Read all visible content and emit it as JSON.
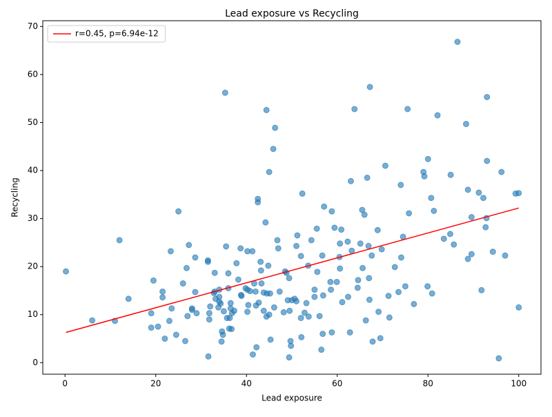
{
  "chart_data": {
    "type": "scatter",
    "title": "Lead exposure vs Recycling",
    "xlabel": "Lead exposure",
    "ylabel": "Recycling",
    "xlim": [
      -4.9,
      104.9
    ],
    "ylim": [
      -2.4,
      71.2
    ],
    "xticks": [
      0,
      20,
      40,
      60,
      80,
      100
    ],
    "yticks": [
      0,
      10,
      20,
      30,
      40,
      50,
      60,
      70
    ],
    "legend_loc": "upper left",
    "points": {
      "color": "#1f77b4",
      "x": [
        0.2,
        6,
        11,
        12,
        14,
        19,
        19,
        19.5,
        20.5,
        21.5,
        21.5,
        22,
        23,
        23.3,
        23.5,
        24.5,
        25,
        26,
        26.5,
        26.8,
        27,
        27.3,
        28,
        28,
        28.7,
        28.7,
        29,
        31.5,
        31.5,
        31.6,
        31.8,
        31.8,
        32,
        32.8,
        33,
        33,
        33.2,
        33.8,
        34,
        34,
        34,
        34.3,
        34.5,
        34.6,
        34.8,
        35,
        35.3,
        35.5,
        35.7,
        36,
        36,
        36.2,
        36.3,
        36.5,
        36.5,
        36.7,
        36.8,
        37.3,
        37.8,
        38.2,
        38.7,
        38.8,
        38.9,
        39.8,
        40.2,
        40.2,
        40.2,
        40.4,
        40.8,
        41.3,
        41.4,
        41.7,
        42,
        42.1,
        42.2,
        42.5,
        42.5,
        42.7,
        43.1,
        43.2,
        43.3,
        43.8,
        43.8,
        44.2,
        44.4,
        44.4,
        44.5,
        44.8,
        45,
        45,
        45.2,
        45.3,
        45.9,
        46.1,
        46.3,
        46.8,
        47,
        47.3,
        48.2,
        48.5,
        48.8,
        49.1,
        49.4,
        49.4,
        49.5,
        49.7,
        49.8,
        50,
        50.6,
        51,
        51,
        51.2,
        52,
        52,
        52.1,
        52.3,
        52.8,
        53.2,
        53.6,
        53.7,
        54.3,
        55,
        55,
        55.5,
        55.6,
        56.1,
        56.5,
        56.7,
        56.8,
        56.9,
        57.1,
        58.5,
        58.6,
        58.8,
        58.8,
        59.4,
        59.9,
        60.5,
        60.6,
        60.6,
        60.9,
        61.1,
        62.3,
        62.4,
        62.8,
        63,
        63.2,
        63.8,
        64.5,
        64.6,
        65.1,
        65.5,
        65.6,
        66,
        66.3,
        66.6,
        66.9,
        67,
        67.1,
        67.2,
        67.6,
        67.8,
        68.9,
        69.1,
        69.5,
        69.8,
        70.6,
        71.3,
        71.5,
        72.7,
        73.5,
        74,
        74.1,
        74.5,
        75,
        75.5,
        75.8,
        76.9,
        79,
        79.2,
        79.9,
        80,
        80.7,
        80.9,
        81.3,
        82.1,
        83.5,
        84.9,
        85,
        85.7,
        86.5,
        88.4,
        88.8,
        88.8,
        89.6,
        89.6,
        91.2,
        91.8,
        92.2,
        92.7,
        92.9,
        93,
        93,
        94.3,
        95.6,
        96.2,
        97,
        99.3,
        100,
        100
      ],
      "y": [
        19,
        8.8,
        8.7,
        25.5,
        13.3,
        10.3,
        7.3,
        17.1,
        7.5,
        14.8,
        13.6,
        5,
        8.7,
        23.2,
        11.3,
        5.8,
        31.5,
        16.5,
        4.5,
        19.7,
        9.7,
        24.5,
        11,
        11.3,
        21.9,
        14.7,
        10.3,
        21.3,
        21,
        1.3,
        10.3,
        9,
        11.7,
        14.5,
        18.7,
        14.8,
        13.3,
        11.5,
        15.2,
        13.7,
        12.7,
        12.3,
        4.4,
        6.5,
        5.8,
        10.7,
        56.2,
        24.2,
        9.3,
        18.6,
        15.5,
        7.1,
        9.3,
        11.3,
        12.4,
        7,
        10.3,
        10.8,
        20.7,
        17.3,
        23.8,
        14.1,
        13.9,
        15.5,
        15.2,
        23.2,
        10.6,
        12,
        14.9,
        23.2,
        1.7,
        16.5,
        14.8,
        11.9,
        3.2,
        34.1,
        33.4,
        12.5,
        21,
        19.2,
        16.5,
        14.6,
        10.8,
        29.2,
        52.6,
        9.6,
        14.4,
        20.2,
        39.7,
        10,
        14.4,
        4.8,
        44.5,
        11.5,
        48.9,
        25.5,
        23.8,
        14.8,
        10.5,
        19,
        18.7,
        13,
        17.6,
        1.1,
        10.8,
        4.5,
        3.5,
        13,
        13.3,
        24.3,
        12.8,
        26.5,
        22.2,
        9.3,
        5.3,
        35.2,
        10.4,
        12.4,
        20.2,
        9.6,
        25.5,
        15.2,
        13.7,
        27.9,
        18.9,
        9.7,
        2.7,
        22.3,
        6,
        14,
        32.5,
        16.8,
        15.2,
        31.5,
        6.3,
        28.1,
        16.8,
        22,
        24.8,
        19.6,
        27.7,
        12.6,
        25.2,
        13.7,
        6.3,
        37.8,
        23.3,
        52.8,
        15.6,
        17.2,
        24.8,
        31.8,
        19.7,
        30.8,
        8.8,
        38.5,
        24.3,
        17.6,
        13.1,
        57.4,
        22.3,
        4.4,
        27.6,
        10.6,
        5.1,
        23.6,
        41,
        13.9,
        9.4,
        19.9,
        14.7,
        37,
        21.9,
        26.2,
        15.9,
        52.8,
        31.1,
        12.2,
        39.7,
        38.8,
        15.9,
        42.4,
        34.3,
        14.4,
        31.6,
        51.5,
        25.8,
        26.8,
        39.1,
        24.6,
        66.8,
        49.7,
        21.6,
        36,
        30.3,
        22.6,
        35.4,
        15.1,
        34.3,
        28.2,
        30.1,
        55.3,
        42,
        23.1,
        0.9,
        39.7,
        22.3,
        35.2,
        35.3,
        11.5
      ]
    },
    "fit_line": {
      "name": "r=0.45, p=6.94e-12",
      "color": "#ff0000",
      "x": [
        0.2,
        100
      ],
      "y": [
        6.3,
        32.2
      ]
    }
  }
}
